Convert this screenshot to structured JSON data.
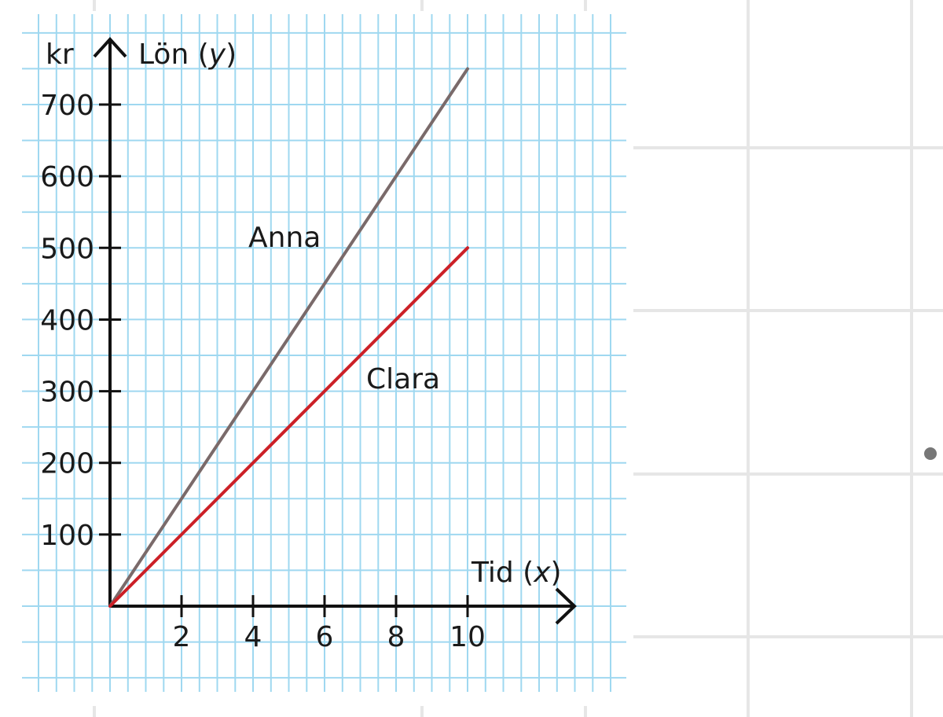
{
  "chart_data": {
    "type": "line",
    "unit_label": "kr",
    "ylabel_text": "Lön (",
    "ylabel_var": "y",
    "ylabel_close": ")",
    "xlabel_text": "Tid (",
    "xlabel_var": "x",
    "xlabel_close": ")",
    "xlim": [
      0,
      10
    ],
    "ylim": [
      0,
      750
    ],
    "xticks": [
      2,
      4,
      6,
      8,
      10
    ],
    "yticks": [
      100,
      200,
      300,
      400,
      500,
      600,
      700
    ],
    "grid": true,
    "series": [
      {
        "name": "Anna",
        "x": [
          0,
          10
        ],
        "y": [
          0,
          750
        ],
        "color": "#7a6a6a"
      },
      {
        "name": "Clara",
        "x": [
          0,
          10
        ],
        "y": [
          0,
          500
        ],
        "color": "#cc2027"
      }
    ]
  },
  "colors": {
    "grid_minor": "#9fd8f0",
    "grid_bg_lines": "#e6e6e6",
    "axis": "#111111",
    "anna": "#7a6a6a",
    "clara": "#cc2027",
    "dot": "#777777"
  }
}
